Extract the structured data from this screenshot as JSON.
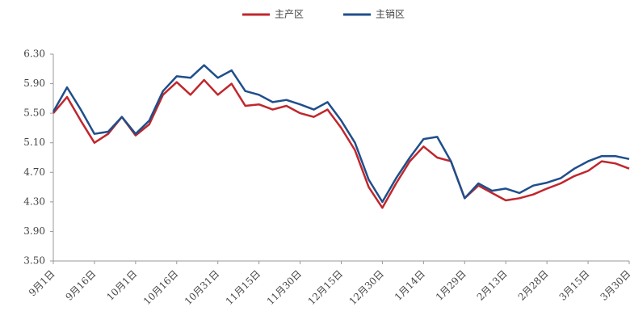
{
  "chart_data": {
    "type": "line",
    "categories": [
      "9月1日",
      null,
      null,
      "9月16日",
      null,
      null,
      "10月1日",
      null,
      null,
      "10月16日",
      null,
      null,
      "10月31日",
      null,
      null,
      "11月15日",
      null,
      null,
      "11月30日",
      null,
      null,
      "12月15日",
      null,
      null,
      "12月30日",
      null,
      null,
      "1月14日",
      null,
      null,
      "1月29日",
      null,
      null,
      "2月13日",
      null,
      null,
      "2月28日",
      null,
      null,
      "3月15日",
      null,
      null,
      "3月30日"
    ],
    "series": [
      {
        "name": "主产区",
        "color": "#c0272d",
        "values": [
          5.5,
          5.72,
          5.4,
          5.1,
          5.22,
          5.45,
          5.2,
          5.35,
          5.75,
          5.92,
          5.75,
          5.95,
          5.75,
          5.9,
          5.6,
          5.62,
          5.55,
          5.6,
          5.5,
          5.45,
          5.55,
          5.3,
          5.0,
          4.5,
          4.22,
          4.55,
          4.85,
          5.05,
          4.9,
          4.85,
          4.35,
          4.52,
          4.42,
          4.32,
          4.35,
          4.4,
          4.48,
          4.55,
          4.65,
          4.72,
          4.85,
          4.82,
          4.75
        ]
      },
      {
        "name": "主销区",
        "color": "#1f4e8c",
        "values": [
          5.52,
          5.85,
          5.55,
          5.22,
          5.25,
          5.45,
          5.22,
          5.4,
          5.8,
          6.0,
          5.98,
          6.15,
          5.98,
          6.08,
          5.8,
          5.75,
          5.65,
          5.68,
          5.62,
          5.55,
          5.65,
          5.4,
          5.1,
          4.6,
          4.3,
          4.62,
          4.9,
          5.15,
          5.18,
          4.85,
          4.35,
          4.55,
          4.45,
          4.48,
          4.42,
          4.52,
          4.56,
          4.62,
          4.75,
          4.85,
          4.92,
          4.92,
          4.88
        ]
      }
    ],
    "ylim": [
      3.5,
      6.3
    ],
    "yticks": [
      {
        "value": 3.5,
        "label": "3.50"
      },
      {
        "value": 3.9,
        "label": "3.90"
      },
      {
        "value": 4.3,
        "label": "4.30"
      },
      {
        "value": 4.7,
        "label": "4.70"
      },
      {
        "value": 5.1,
        "label": "5.10"
      },
      {
        "value": 5.5,
        "label": "5.50"
      },
      {
        "value": 5.9,
        "label": "5.90"
      },
      {
        "value": 6.3,
        "label": "6.30"
      }
    ],
    "legend": "top",
    "grid": false
  }
}
